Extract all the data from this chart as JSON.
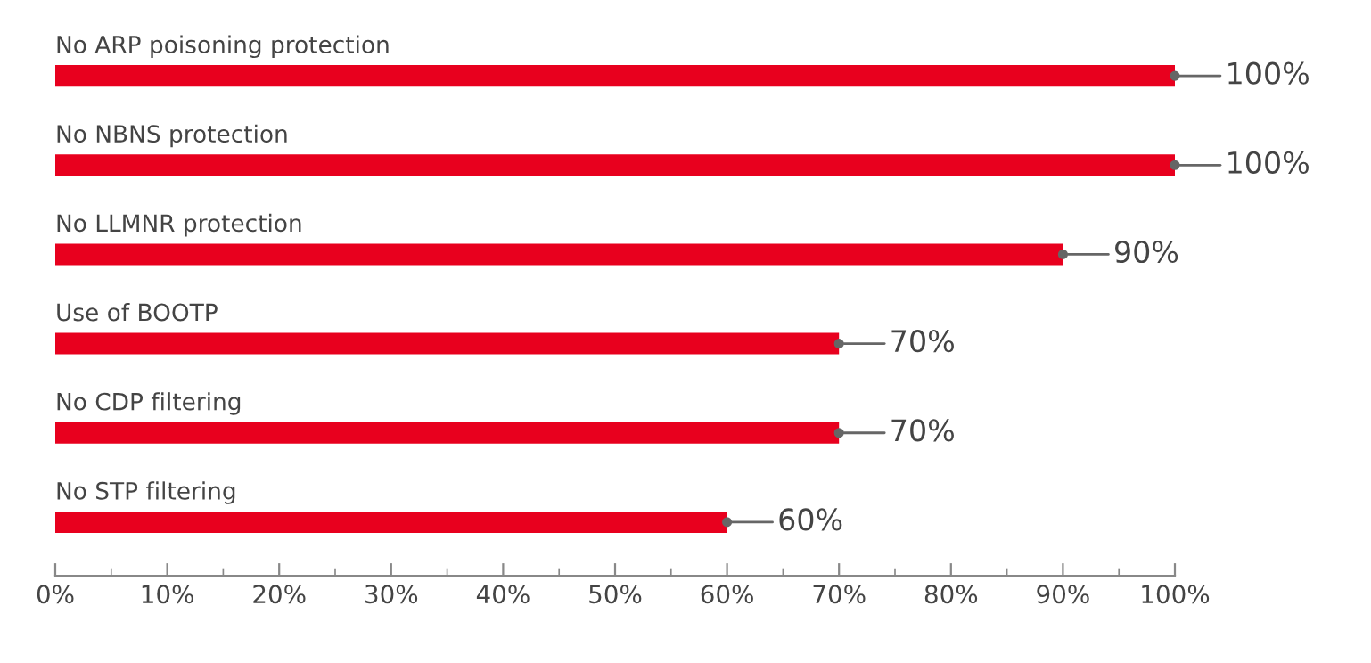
{
  "chart_data": {
    "type": "bar",
    "orientation": "horizontal",
    "categories": [
      "No ARP poisoning protection",
      "No NBNS protection",
      "No LLMNR protection",
      "Use of BOOTP",
      "No CDP filtering",
      "No STP filtering"
    ],
    "values": [
      100,
      100,
      90,
      70,
      70,
      60
    ],
    "value_labels": [
      "100%",
      "100%",
      "90%",
      "70%",
      "70%",
      "60%"
    ],
    "color": "#e8001e",
    "xlim": [
      0,
      100
    ],
    "xticks": [
      {
        "value": 0,
        "label": "0%"
      },
      {
        "value": 10,
        "label": "10%"
      },
      {
        "value": 20,
        "label": "20%"
      },
      {
        "value": 30,
        "label": "30%"
      },
      {
        "value": 40,
        "label": "40%"
      },
      {
        "value": 50,
        "label": "50%"
      },
      {
        "value": 60,
        "label": "60%"
      },
      {
        "value": 70,
        "label": "70%"
      },
      {
        "value": 80,
        "label": "80%"
      },
      {
        "value": 90,
        "label": "90%"
      },
      {
        "value": 100,
        "label": "100%"
      }
    ],
    "tick_labels": "x",
    "grid": false,
    "legend": false
  }
}
